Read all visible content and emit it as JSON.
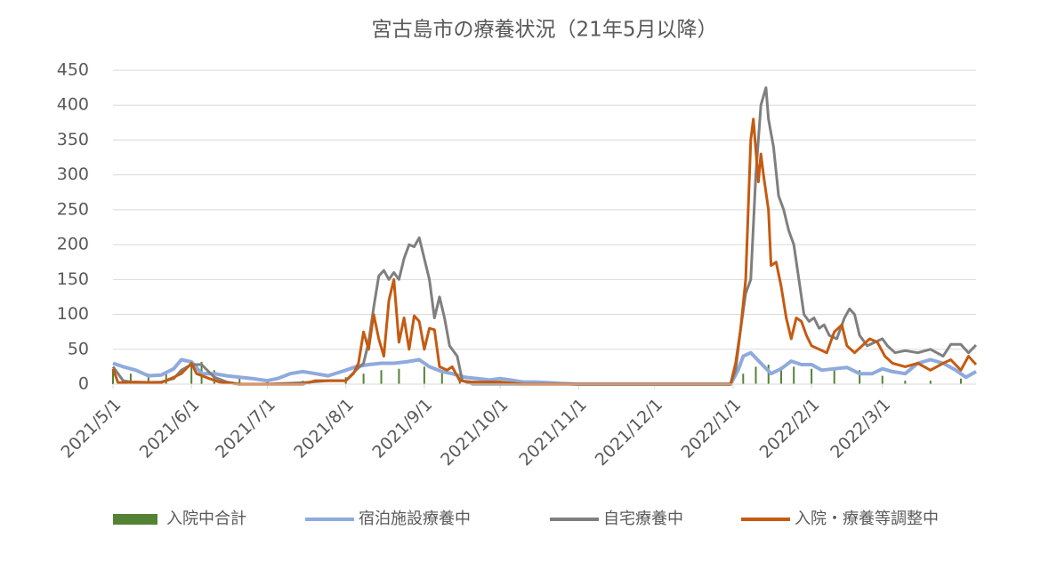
{
  "chart_data": {
    "type": "line",
    "title": "宮古島市の療養状況（21年5月以降）",
    "xlim": [
      "2021/5/1",
      "2022/4/7"
    ],
    "xticks": [
      "2021/5/1",
      "2021/6/1",
      "2021/7/1",
      "2021/8/1",
      "2021/9/1",
      "2021/10/1",
      "2021/11/1",
      "2021/12/1",
      "2022/1/1",
      "2022/2/1",
      "2022/3/1"
    ],
    "ylim": [
      0,
      450
    ],
    "yticks": [
      0,
      50,
      100,
      150,
      200,
      250,
      300,
      350,
      400,
      450
    ],
    "grid": true,
    "legend": "bottom",
    "series": [
      {
        "name": "入院中合計",
        "type": "bar",
        "color": "#548235",
        "x": [
          "2021/5/1",
          "2021/5/8",
          "2021/5/15",
          "2021/5/22",
          "2021/6/1",
          "2021/6/5",
          "2021/6/10",
          "2021/6/20",
          "2021/7/1",
          "2021/7/15",
          "2021/8/1",
          "2021/8/8",
          "2021/8/15",
          "2021/8/22",
          "2021/9/1",
          "2021/9/8",
          "2021/9/15",
          "2021/10/1",
          "2021/10/15",
          "2021/11/1",
          "2021/12/1",
          "2022/1/1",
          "2022/1/5",
          "2022/1/10",
          "2022/1/15",
          "2022/1/20",
          "2022/1/25",
          "2022/2/1",
          "2022/2/10",
          "2022/2/20",
          "2022/3/1",
          "2022/3/10",
          "2022/3/20",
          "2022/4/1"
        ],
        "values": [
          20,
          15,
          15,
          18,
          30,
          32,
          20,
          10,
          5,
          5,
          10,
          15,
          20,
          22,
          25,
          20,
          10,
          5,
          0,
          0,
          0,
          0,
          15,
          25,
          28,
          25,
          25,
          22,
          20,
          20,
          12,
          5,
          5,
          8
        ]
      },
      {
        "name": "宿泊施設療養中",
        "type": "line",
        "color": "#8faadc",
        "x": [
          "2021/5/1",
          "2021/5/5",
          "2021/5/10",
          "2021/5/15",
          "2021/5/20",
          "2021/5/25",
          "2021/5/28",
          "2021/6/1",
          "2021/6/5",
          "2021/6/10",
          "2021/6/15",
          "2021/6/20",
          "2021/6/25",
          "2021/7/1",
          "2021/7/5",
          "2021/7/10",
          "2021/7/15",
          "2021/7/20",
          "2021/7/25",
          "2021/8/1",
          "2021/8/5",
          "2021/8/10",
          "2021/8/15",
          "2021/8/20",
          "2021/8/25",
          "2021/8/30",
          "2021/9/3",
          "2021/9/8",
          "2021/9/12",
          "2021/9/17",
          "2021/9/22",
          "2021/9/27",
          "2021/10/1",
          "2021/10/5",
          "2021/10/10",
          "2021/10/15",
          "2021/10/20",
          "2021/10/25",
          "2021/11/1",
          "2021/12/31",
          "2022/1/3",
          "2022/1/5",
          "2022/1/8",
          "2022/1/12",
          "2022/1/16",
          "2022/1/20",
          "2022/1/24",
          "2022/1/28",
          "2022/2/1",
          "2022/2/5",
          "2022/2/10",
          "2022/2/15",
          "2022/2/20",
          "2022/2/25",
          "2022/3/1",
          "2022/3/5",
          "2022/3/10",
          "2022/3/15",
          "2022/3/20",
          "2022/3/25",
          "2022/3/30",
          "2022/4/3",
          "2022/4/7"
        ],
        "values": [
          30,
          25,
          20,
          12,
          13,
          22,
          35,
          32,
          15,
          15,
          12,
          10,
          8,
          5,
          8,
          15,
          18,
          15,
          12,
          20,
          25,
          28,
          30,
          30,
          32,
          35,
          25,
          18,
          15,
          10,
          8,
          6,
          8,
          6,
          3,
          3,
          2,
          1,
          0,
          0,
          20,
          40,
          45,
          30,
          15,
          22,
          33,
          28,
          28,
          20,
          22,
          24,
          15,
          15,
          22,
          18,
          15,
          30,
          35,
          30,
          20,
          10,
          18
        ]
      },
      {
        "name": "自宅療養中",
        "type": "line",
        "color": "#7f7f7f",
        "x": [
          "2021/5/1",
          "2021/5/5",
          "2021/5/10",
          "2021/5/20",
          "2021/5/25",
          "2021/5/28",
          "2021/6/1",
          "2021/6/5",
          "2021/6/10",
          "2021/6/15",
          "2021/6/20",
          "2021/7/1",
          "2021/7/15",
          "2021/7/25",
          "2021/8/1",
          "2021/8/5",
          "2021/8/8",
          "2021/8/10",
          "2021/8/12",
          "2021/8/14",
          "2021/8/16",
          "2021/8/18",
          "2021/8/20",
          "2021/8/22",
          "2021/8/24",
          "2021/8/26",
          "2021/8/28",
          "2021/8/30",
          "2021/9/1",
          "2021/9/3",
          "2021/9/5",
          "2021/9/7",
          "2021/9/9",
          "2021/9/11",
          "2021/9/14",
          "2021/9/16",
          "2021/9/20",
          "2021/12/31",
          "2022/1/2",
          "2022/1/4",
          "2022/1/6",
          "2022/1/8",
          "2022/1/10",
          "2022/1/12",
          "2022/1/14",
          "2022/1/15",
          "2022/1/17",
          "2022/1/19",
          "2022/1/21",
          "2022/1/23",
          "2022/1/25",
          "2022/1/27",
          "2022/1/29",
          "2022/1/31",
          "2022/2/2",
          "2022/2/4",
          "2022/2/6",
          "2022/2/8",
          "2022/2/11",
          "2022/2/14",
          "2022/2/16",
          "2022/2/18",
          "2022/2/20",
          "2022/2/23",
          "2022/2/26",
          "2022/3/1",
          "2022/3/3",
          "2022/3/6",
          "2022/3/10",
          "2022/3/15",
          "2022/3/20",
          "2022/3/25",
          "2022/3/28",
          "2022/4/1",
          "2022/4/4",
          "2022/4/7"
        ],
        "values": [
          25,
          5,
          2,
          3,
          8,
          20,
          28,
          28,
          10,
          3,
          0,
          0,
          2,
          5,
          5,
          20,
          30,
          60,
          110,
          155,
          163,
          150,
          160,
          150,
          180,
          200,
          197,
          210,
          180,
          150,
          95,
          125,
          95,
          55,
          40,
          5,
          0,
          0,
          20,
          80,
          130,
          150,
          300,
          400,
          425,
          380,
          340,
          270,
          250,
          220,
          200,
          150,
          100,
          90,
          95,
          80,
          85,
          70,
          65,
          95,
          108,
          100,
          70,
          55,
          60,
          65,
          55,
          45,
          48,
          45,
          50,
          40,
          57,
          57,
          45,
          56
        ]
      },
      {
        "name": "入院・療養等調整中",
        "type": "line",
        "color": "#c55a11",
        "x": [
          "2021/5/1",
          "2021/5/3",
          "2021/5/10",
          "2021/5/20",
          "2021/5/25",
          "2021/5/28",
          "2021/6/1",
          "2021/6/3",
          "2021/6/8",
          "2021/6/12",
          "2021/6/20",
          "2021/7/15",
          "2021/7/20",
          "2021/7/25",
          "2021/8/1",
          "2021/8/4",
          "2021/8/6",
          "2021/8/8",
          "2021/8/10",
          "2021/8/12",
          "2021/8/14",
          "2021/8/16",
          "2021/8/18",
          "2021/8/20",
          "2021/8/22",
          "2021/8/24",
          "2021/8/26",
          "2021/8/28",
          "2021/8/30",
          "2021/9/1",
          "2021/9/3",
          "2021/9/5",
          "2021/9/7",
          "2021/9/10",
          "2021/9/12",
          "2021/9/15",
          "2021/9/20",
          "2021/10/1",
          "2021/10/10",
          "2021/12/31",
          "2022/1/2",
          "2022/1/4",
          "2022/1/6",
          "2022/1/8",
          "2022/1/9",
          "2022/1/11",
          "2022/1/12",
          "2022/1/13",
          "2022/1/15",
          "2022/1/16",
          "2022/1/18",
          "2022/1/20",
          "2022/1/22",
          "2022/1/24",
          "2022/1/26",
          "2022/1/28",
          "2022/1/30",
          "2022/2/1",
          "2022/2/4",
          "2022/2/7",
          "2022/2/10",
          "2022/2/13",
          "2022/2/15",
          "2022/2/18",
          "2022/2/21",
          "2022/2/24",
          "2022/2/27",
          "2022/3/2",
          "2022/3/5",
          "2022/3/10",
          "2022/3/15",
          "2022/3/20",
          "2022/3/25",
          "2022/3/28",
          "2022/4/1",
          "2022/4/4",
          "2022/4/7"
        ],
        "values": [
          22,
          2,
          3,
          2,
          10,
          15,
          30,
          15,
          8,
          3,
          0,
          0,
          5,
          5,
          5,
          15,
          30,
          75,
          50,
          100,
          65,
          40,
          120,
          150,
          60,
          95,
          50,
          98,
          90,
          50,
          80,
          78,
          25,
          20,
          25,
          5,
          3,
          3,
          0,
          0,
          30,
          80,
          150,
          350,
          380,
          290,
          330,
          300,
          250,
          170,
          175,
          140,
          95,
          65,
          95,
          90,
          70,
          55,
          50,
          45,
          75,
          85,
          55,
          45,
          55,
          65,
          60,
          40,
          30,
          25,
          30,
          20,
          30,
          35,
          20,
          40,
          28
        ]
      }
    ]
  }
}
